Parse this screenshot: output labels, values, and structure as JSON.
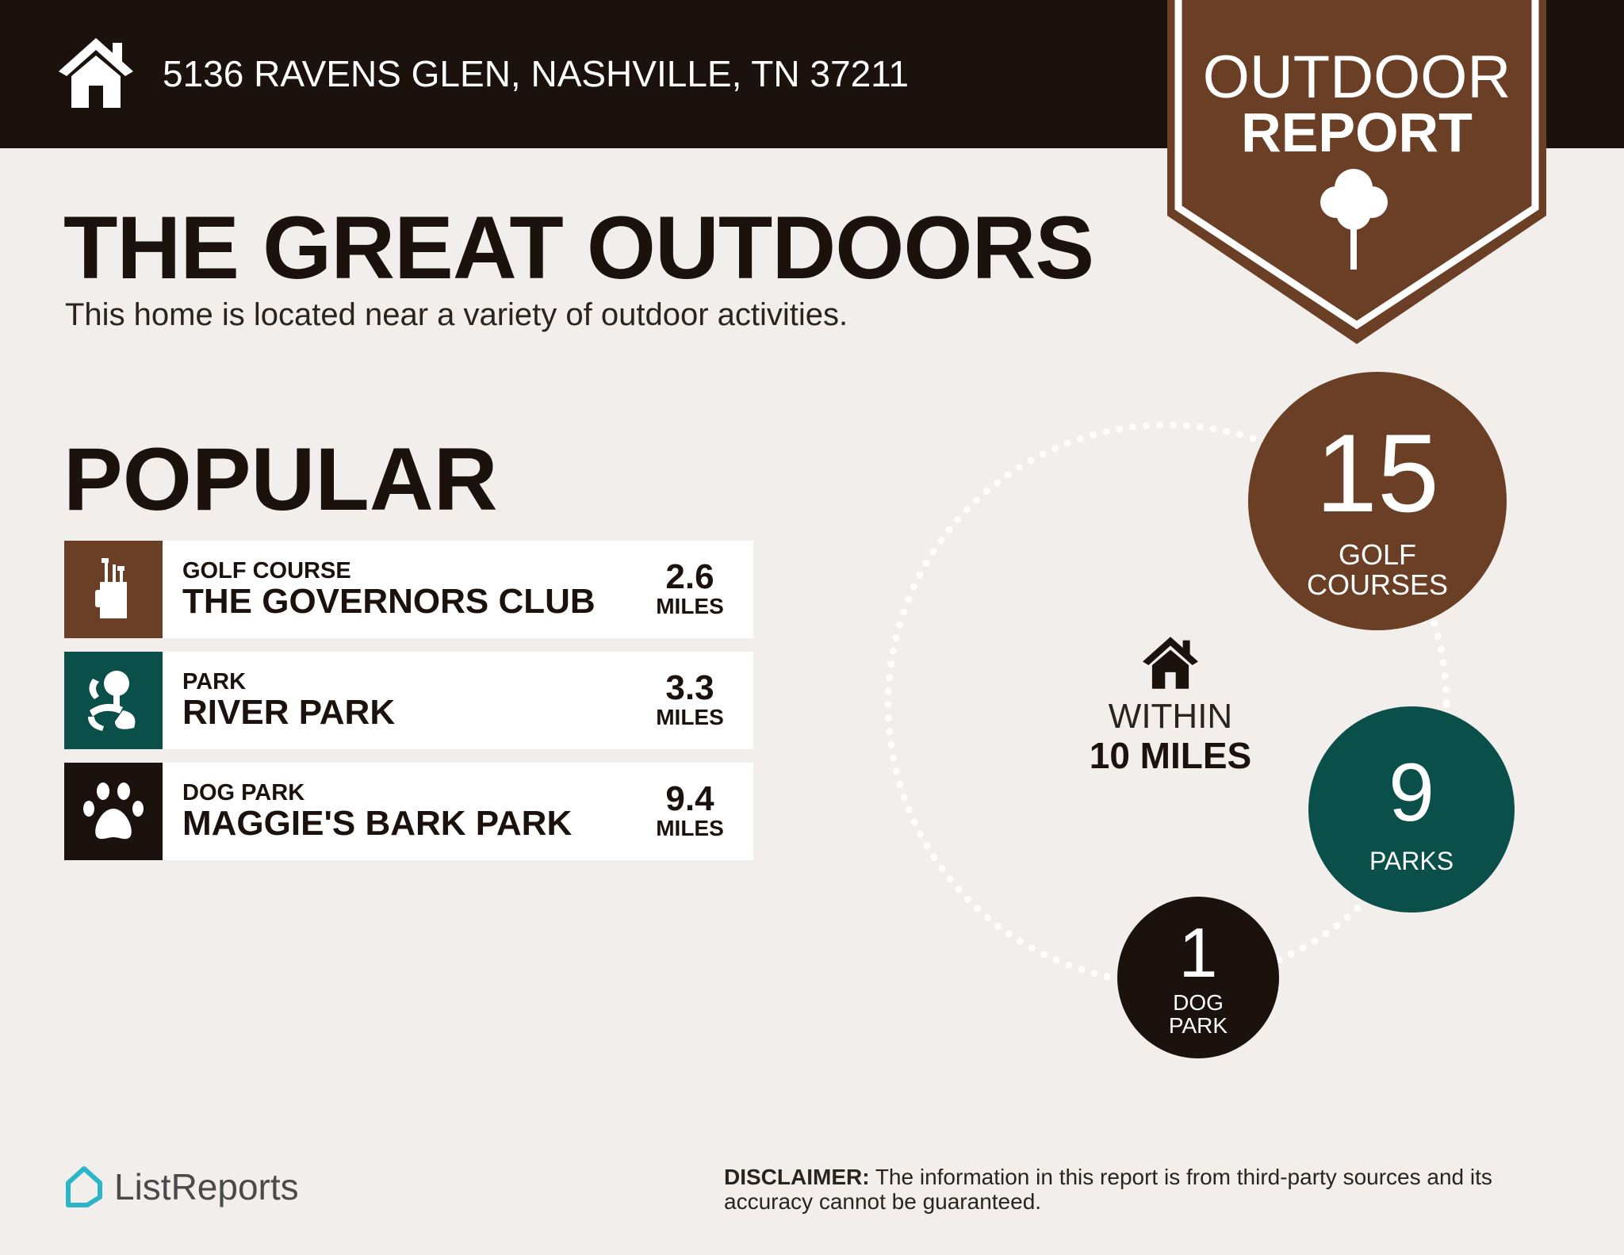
{
  "header": {
    "address": "5136 RAVENS GLEN, NASHVILLE, TN 37211",
    "home_icon": "house-icon"
  },
  "badge": {
    "line1": "OUTDOOR",
    "line2": "REPORT",
    "icon": "tree-icon"
  },
  "title": "THE GREAT OUTDOORS",
  "subtitle": "This home is located near a variety of outdoor activities.",
  "popular": {
    "heading": "POPULAR",
    "items": [
      {
        "category": "GOLF COURSE",
        "name": "THE GOVERNORS CLUB",
        "distance": "2.6",
        "unit": "MILES",
        "icon": "golf-bag-icon",
        "color": "#6b3f25"
      },
      {
        "category": "PARK",
        "name": "RIVER PARK",
        "distance": "3.3",
        "unit": "MILES",
        "icon": "park-tree-icon",
        "color": "#0b4f4a"
      },
      {
        "category": "DOG PARK",
        "name": "MAGGIE'S BARK PARK",
        "distance": "9.4",
        "unit": "MILES",
        "icon": "paw-icon",
        "color": "#1b120e"
      }
    ]
  },
  "radius": {
    "line1": "WITHIN",
    "line2": "10 MILES"
  },
  "counts": [
    {
      "value": "15",
      "label1": "GOLF",
      "label2": "COURSES",
      "color": "#6b3f25"
    },
    {
      "value": "9",
      "label1": "PARKS",
      "color": "#0b4f4a"
    },
    {
      "value": "1",
      "label1": "DOG",
      "label2": "PARK",
      "color": "#1b120e"
    }
  ],
  "footer": {
    "logo": "ListReports",
    "disclaimer_label": "DISCLAIMER:",
    "disclaimer_text": " The information in this report is from third-party sources and its accuracy cannot be guaranteed."
  },
  "colors": {
    "background": "#f1eeeb",
    "dark": "#1b120e",
    "brown": "#6b3f25",
    "teal": "#0b4f4a",
    "logo": "#2bb5c9"
  }
}
